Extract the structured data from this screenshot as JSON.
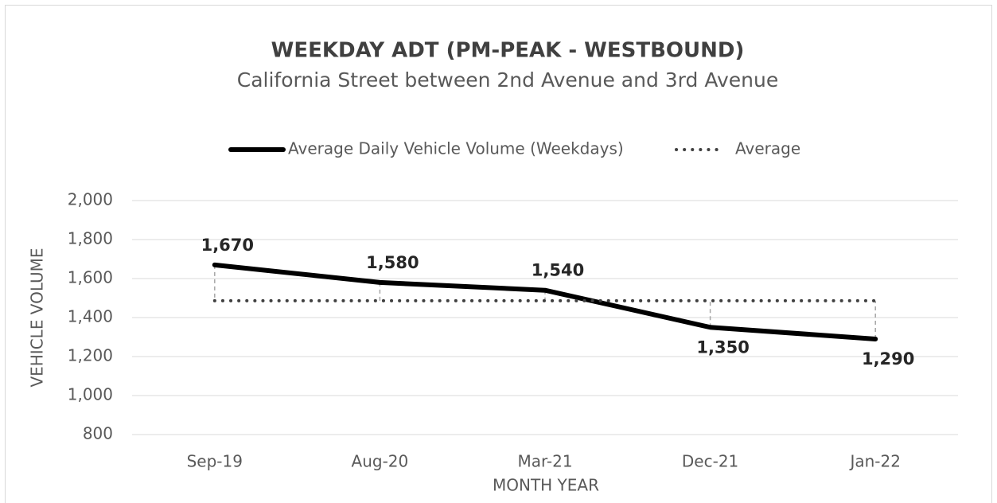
{
  "chart_data": {
    "type": "line",
    "title": "WEEKDAY ADT (PM-PEAK - WESTBOUND)",
    "subtitle": "California Street between 2nd Avenue and 3rd Avenue",
    "x_label": "MONTH YEAR",
    "y_label": "VEHICLE VOLUME",
    "categories": [
      "Sep-19",
      "Aug-20",
      "Mar-21",
      "Dec-21",
      "Jan-22"
    ],
    "series": [
      {
        "name": "Average Daily Vehicle Volume (Weekdays)",
        "color": "#000000",
        "style": "solid",
        "values": [
          1670,
          1580,
          1540,
          1350,
          1290
        ],
        "value_labels": [
          "1,670",
          "1,580",
          "1,540",
          "1,350",
          "1,290"
        ]
      },
      {
        "name": "Average",
        "color": "#404040",
        "style": "dotted",
        "values": [
          1486,
          1486,
          1486,
          1486,
          1486
        ]
      }
    ],
    "ylim": [
      800,
      2000
    ],
    "yticks": [
      800,
      {
        "value": 1000,
        "label": "1,000"
      },
      {
        "value": 1200,
        "label": "1,200"
      },
      {
        "value": 1400,
        "label": "1,400"
      },
      {
        "value": 1600,
        "label": "1,600"
      },
      {
        "value": 1800,
        "label": "1,800"
      },
      {
        "value": 2000,
        "label": "2,000"
      }
    ],
    "grid": true,
    "drop_lines": true,
    "legend": "top"
  }
}
